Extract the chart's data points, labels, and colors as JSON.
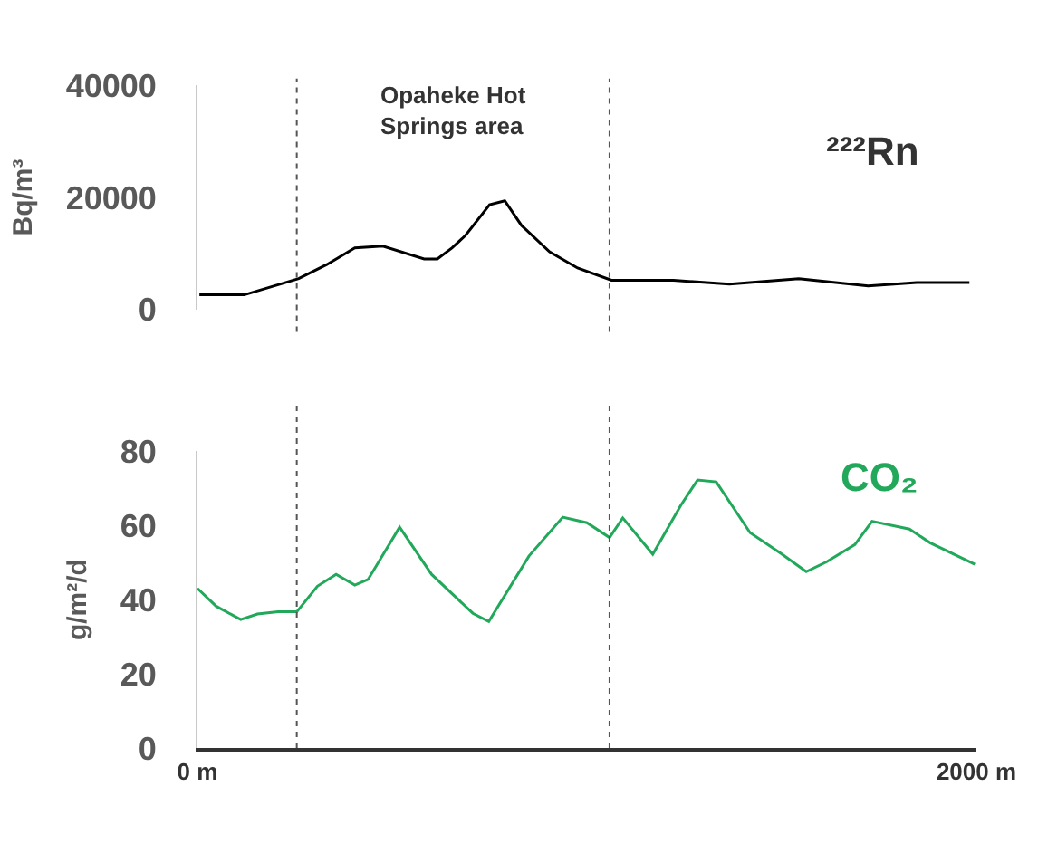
{
  "chart_data": [
    {
      "type": "line",
      "ylabel": "Bq/m³",
      "xlim": [
        0,
        2000
      ],
      "ylim": [
        0,
        40000
      ],
      "yticks": [
        0,
        20000,
        40000
      ],
      "tick_labels": "y",
      "legend": false,
      "annotations": [
        "Opaheke Hot\nSprings area"
      ],
      "ref_lines": [
        {
          "axis": "x",
          "value": 255,
          "color": "#555555",
          "line_style": "dashed"
        },
        {
          "axis": "x",
          "value": 1058,
          "color": "#555555",
          "line_style": "dashed"
        }
      ],
      "series": [
        {
          "name": "²²²Rn",
          "color": "#000000",
          "x": [
            5,
            120,
            260,
            332,
            404,
            476,
            582,
            616,
            654,
            688,
            750,
            789,
            832,
            904,
            976,
            1063,
            1222,
            1366,
            1544,
            1722,
            1847,
            1982
          ],
          "values": [
            2600,
            2600,
            5500,
            8000,
            11000,
            11300,
            9000,
            9000,
            11000,
            13200,
            18700,
            19400,
            15000,
            10300,
            7400,
            5200,
            5200,
            4500,
            5500,
            4200,
            4800,
            4800
          ]
        }
      ]
    },
    {
      "type": "line",
      "ylabel": "g/m²/d",
      "xlim": [
        0,
        2000
      ],
      "xticks": [
        {
          "value": 0,
          "label": "0 m"
        },
        {
          "value": 2000,
          "label": "2000 m"
        }
      ],
      "ylim": [
        0,
        80
      ],
      "yticks": [
        0,
        20,
        40,
        60,
        80
      ],
      "legend": false,
      "ref_lines": [
        {
          "axis": "x",
          "value": 255,
          "color": "#555555",
          "line_style": "dashed"
        },
        {
          "axis": "x",
          "value": 1058,
          "color": "#555555",
          "line_style": "dashed"
        }
      ],
      "series": [
        {
          "name": "CO₂",
          "color": "#22a85a",
          "x": [
            0,
            48,
            111,
            154,
            207,
            255,
            308,
            356,
            404,
            438,
            519,
            601,
            707,
            748,
            851,
            938,
            1000,
            1058,
            1092,
            1169,
            1241,
            1284,
            1332,
            1419,
            1501,
            1563,
            1616,
            1688,
            1732,
            1828,
            1881,
            1996
          ],
          "values": [
            43.0,
            38.2,
            34.6,
            36.1,
            36.7,
            36.7,
            43.6,
            46.8,
            43.9,
            45.4,
            59.5,
            46.8,
            36.3,
            34.1,
            51.7,
            62.2,
            60.7,
            56.7,
            62.0,
            52.2,
            65.4,
            72.2,
            71.7,
            58.0,
            52.2,
            47.5,
            50.2,
            54.8,
            61.1,
            59.0,
            55.3,
            49.5
          ]
        }
      ]
    }
  ]
}
